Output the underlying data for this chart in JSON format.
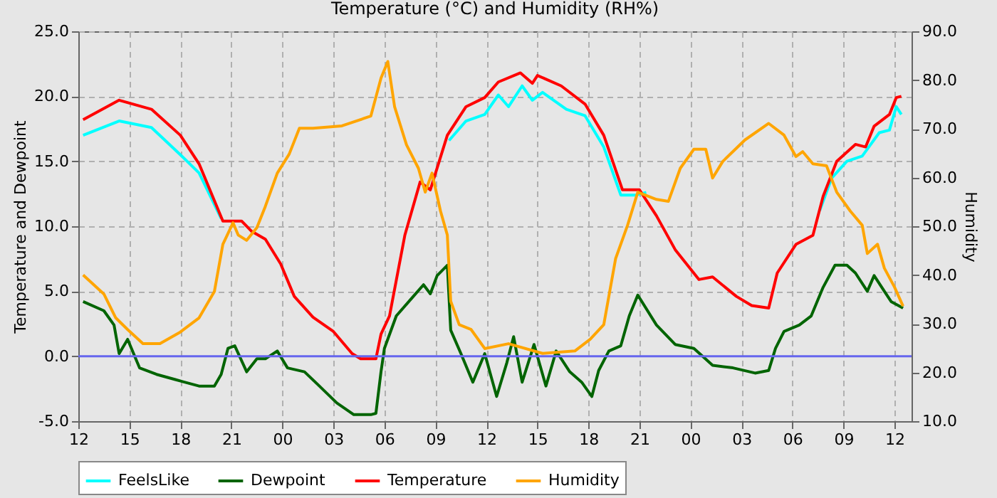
{
  "chart_data": {
    "type": "line",
    "title": "Temperature (°C) and Humidity (RH%)",
    "ylabel": "Temperature and Dewpoint",
    "y2label": "Humidity",
    "xlim": [
      12,
      61
    ],
    "xticks": [
      12,
      15,
      18,
      21,
      {
        "value": 24,
        "label": "00"
      },
      {
        "value": 27,
        "label": "03"
      },
      {
        "value": 30,
        "label": "06"
      },
      {
        "value": 33,
        "label": "09"
      },
      {
        "value": 36,
        "label": "12"
      },
      {
        "value": 39,
        "label": "15"
      },
      {
        "value": 42,
        "label": "18"
      },
      {
        "value": 45,
        "label": "21"
      },
      {
        "value": 48,
        "label": "00"
      },
      {
        "value": 51,
        "label": "03"
      },
      {
        "value": 54,
        "label": "06"
      },
      {
        "value": 57,
        "label": "09"
      },
      {
        "value": 60,
        "label": "12"
      }
    ],
    "ylim": [
      -5,
      25
    ],
    "yticks": [
      {
        "value": -5,
        "label": "-5.0"
      },
      {
        "value": 0,
        "label": "0.0"
      },
      {
        "value": 5,
        "label": "5.0"
      },
      {
        "value": 10,
        "label": "10.0"
      },
      {
        "value": 15,
        "label": "15.0"
      },
      {
        "value": 20,
        "label": "20.0"
      },
      {
        "value": 25,
        "label": "25.0"
      }
    ],
    "y2lim": [
      10,
      90
    ],
    "y2ticks": [
      {
        "value": 10,
        "label": "10.0"
      },
      {
        "value": 20,
        "label": "20.0"
      },
      {
        "value": 30,
        "label": "30.0"
      },
      {
        "value": 40,
        "label": "40.0"
      },
      {
        "value": 50,
        "label": "50.0"
      },
      {
        "value": 60,
        "label": "60.0"
      },
      {
        "value": 70,
        "label": "70.0"
      },
      {
        "value": 80,
        "label": "80.0"
      },
      {
        "value": 90,
        "label": "90.0"
      }
    ],
    "grid": true,
    "legend": "bottom",
    "marker": "none",
    "ref_lines": [
      {
        "axis": "y",
        "value": 0,
        "color": "#6666ee"
      }
    ],
    "series": [
      {
        "name": "FeelsLike",
        "color": "#00ffff",
        "x": [
          12.28,
          14.4,
          16.3,
          18.0,
          19.1,
          20.4,
          null,
          33.8,
          34.8,
          35.9,
          36.7,
          37.3,
          38.1,
          38.7,
          39.3,
          40.7,
          41.8,
          42.9,
          43.9,
          44.8,
          45.4,
          null,
          55.6,
          56.3,
          57.2,
          58.1,
          59.1,
          59.7,
          60.1,
          60.4
        ],
        "values": [
          17.0,
          18.1,
          17.6,
          15.5,
          14.1,
          10.6,
          null,
          16.6,
          18.1,
          18.6,
          20.1,
          19.2,
          20.8,
          19.7,
          20.3,
          19.0,
          18.5,
          16.1,
          12.4,
          12.4,
          12.6,
          null,
          11.2,
          13.7,
          15.0,
          15.4,
          17.2,
          17.4,
          19.2,
          18.6
        ]
      },
      {
        "name": "Dewpoint",
        "color": "#006400",
        "x": [
          12.28,
          13.5,
          14.1,
          14.4,
          14.9,
          15.6,
          16.6,
          17.7,
          19.1,
          20.0,
          20.4,
          20.8,
          21.2,
          21.9,
          22.5,
          23.0,
          23.7,
          24.3,
          25.3,
          26.1,
          27.2,
          28.2,
          29.2,
          29.5,
          29.8,
          30.0,
          30.7,
          31.7,
          32.3,
          32.7,
          33.1,
          33.7,
          33.9,
          34.5,
          35.2,
          35.9,
          36.6,
          37.2,
          37.6,
          38.1,
          38.8,
          39.5,
          40.1,
          40.9,
          41.6,
          42.2,
          42.6,
          43.2,
          43.9,
          44.4,
          44.9,
          46.0,
          47.1,
          48.2,
          49.3,
          50.5,
          51.8,
          52.6,
          53.0,
          53.5,
          54.4,
          55.1,
          55.8,
          56.5,
          57.2,
          57.7,
          58.4,
          58.8,
          59.4,
          59.8,
          60.5
        ],
        "values": [
          4.2,
          3.5,
          2.4,
          0.2,
          1.3,
          -0.9,
          -1.4,
          -1.8,
          -2.3,
          -2.3,
          -1.4,
          0.6,
          0.8,
          -1.2,
          -0.2,
          -0.2,
          0.4,
          -0.9,
          -1.2,
          -2.2,
          -3.6,
          -4.5,
          -4.5,
          -4.4,
          -1.2,
          0.6,
          3.1,
          4.6,
          5.5,
          4.8,
          6.2,
          7.0,
          2.0,
          0.2,
          -2.0,
          0.2,
          -3.1,
          -0.5,
          1.5,
          -2.0,
          0.9,
          -2.3,
          0.4,
          -1.2,
          -2.0,
          -3.1,
          -1.1,
          0.4,
          0.8,
          3.1,
          4.7,
          2.4,
          0.9,
          0.6,
          -0.7,
          -0.9,
          -1.3,
          -1.1,
          0.6,
          1.9,
          2.4,
          3.1,
          5.3,
          7.0,
          7.0,
          6.4,
          5.0,
          6.2,
          5.0,
          4.2,
          3.7
        ]
      },
      {
        "name": "Temperature",
        "color": "#ff0000",
        "x": [
          12.28,
          14.4,
          16.3,
          18.0,
          19.1,
          20.5,
          21.6,
          22.2,
          23.0,
          23.9,
          24.7,
          25.8,
          27.0,
          28.1,
          28.6,
          29.5,
          29.8,
          30.3,
          31.2,
          32.1,
          32.7,
          33.7,
          34.8,
          35.9,
          36.7,
          38.0,
          38.7,
          39.0,
          40.4,
          41.8,
          42.9,
          44.0,
          45.0,
          46.0,
          47.1,
          48.5,
          49.3,
          50.7,
          51.6,
          52.6,
          53.1,
          54.2,
          55.2,
          55.8,
          56.6,
          57.7,
          58.3,
          58.8,
          59.7,
          60.1,
          60.4
        ],
        "values": [
          18.2,
          19.7,
          19.0,
          17.0,
          14.8,
          10.4,
          10.4,
          9.6,
          9.0,
          7.1,
          4.6,
          3.0,
          1.9,
          0.2,
          -0.2,
          -0.2,
          1.7,
          3.1,
          9.3,
          13.4,
          12.8,
          17.0,
          19.2,
          19.9,
          21.1,
          21.8,
          21.0,
          21.6,
          20.8,
          19.4,
          17.0,
          12.8,
          12.8,
          10.8,
          8.2,
          5.9,
          6.1,
          4.6,
          3.9,
          3.7,
          6.4,
          8.6,
          9.3,
          12.3,
          15.0,
          16.3,
          16.1,
          17.7,
          18.6,
          19.9,
          20.0
        ]
      },
      {
        "name": "Humidity",
        "color": "#ffa500",
        "axis": "y2",
        "x": [
          12.28,
          13.5,
          14.2,
          14.9,
          15.8,
          16.8,
          18.0,
          19.1,
          20.0,
          20.5,
          21.1,
          21.4,
          21.9,
          22.5,
          23.0,
          23.7,
          24.4,
          25.0,
          25.8,
          27.5,
          29.2,
          29.8,
          30.2,
          30.6,
          31.3,
          32.0,
          32.4,
          32.8,
          33.3,
          33.7,
          33.9,
          34.4,
          35.1,
          35.9,
          37.3,
          39.3,
          41.2,
          42.1,
          42.9,
          43.6,
          44.3,
          44.9,
          46.0,
          46.7,
          47.4,
          48.2,
          48.9,
          49.3,
          49.9,
          51.2,
          52.6,
          53.5,
          54.2,
          54.6,
          55.2,
          56.0,
          56.6,
          57.4,
          58.1,
          58.4,
          59.0,
          59.4,
          60.0,
          60.5
        ],
        "values": [
          40.0,
          36.1,
          31.2,
          28.8,
          25.9,
          25.9,
          28.3,
          31.2,
          36.6,
          46.3,
          50.7,
          48.2,
          47.1,
          49.7,
          54.1,
          60.9,
          64.8,
          70.1,
          70.1,
          70.6,
          72.6,
          80.4,
          83.8,
          74.5,
          66.7,
          61.9,
          57.0,
          60.9,
          53.1,
          48.2,
          34.6,
          29.8,
          28.8,
          24.9,
          25.9,
          23.9,
          24.4,
          26.8,
          29.8,
          43.4,
          50.2,
          57.0,
          55.5,
          55.1,
          61.9,
          65.8,
          65.8,
          59.9,
          63.3,
          67.7,
          71.1,
          68.7,
          64.3,
          65.3,
          62.8,
          62.4,
          57.0,
          53.1,
          50.2,
          44.4,
          46.3,
          41.4,
          37.5,
          33.6
        ]
      }
    ]
  }
}
